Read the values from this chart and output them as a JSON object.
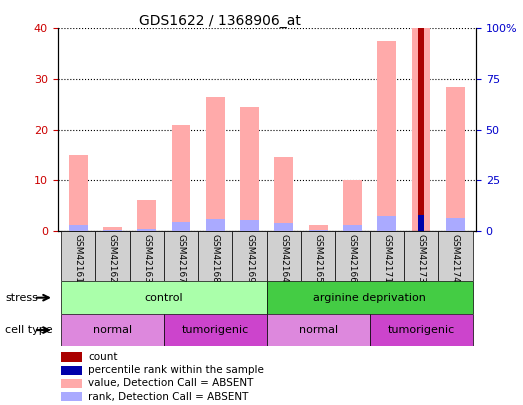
{
  "title": "GDS1622 / 1368906_at",
  "samples": [
    "GSM42161",
    "GSM42162",
    "GSM42163",
    "GSM42167",
    "GSM42168",
    "GSM42169",
    "GSM42164",
    "GSM42165",
    "GSM42166",
    "GSM42171",
    "GSM42173",
    "GSM42174"
  ],
  "value_absent": [
    15.0,
    0.8,
    6.0,
    21.0,
    26.5,
    24.5,
    14.5,
    1.2,
    10.0,
    37.5,
    40.0,
    28.5
  ],
  "rank_absent": [
    3.0,
    0.5,
    1.0,
    4.5,
    6.0,
    5.5,
    4.0,
    0.3,
    3.0,
    7.5,
    0.0,
    6.5
  ],
  "count_value": [
    0,
    0,
    0,
    0,
    0,
    0,
    0,
    0,
    0,
    0,
    40.0,
    0
  ],
  "percentile_rank": [
    0,
    0,
    0,
    0,
    0,
    0,
    0,
    0,
    0,
    0,
    8.0,
    0
  ],
  "ylim_left": [
    0,
    40
  ],
  "ylim_right": [
    0,
    100
  ],
  "yticks_left": [
    0,
    10,
    20,
    30,
    40
  ],
  "ytick_labels_right": [
    "0",
    "25",
    "50",
    "75",
    "100%"
  ],
  "stress_groups": [
    {
      "label": "control",
      "start": 0,
      "end": 6,
      "color": "#aaffaa"
    },
    {
      "label": "arginine deprivation",
      "start": 6,
      "end": 12,
      "color": "#44cc44"
    }
  ],
  "celltype_groups": [
    {
      "label": "normal",
      "start": 0,
      "end": 3,
      "color": "#dd88dd"
    },
    {
      "label": "tumorigenic",
      "start": 3,
      "end": 6,
      "color": "#cc44cc"
    },
    {
      "label": "normal",
      "start": 6,
      "end": 9,
      "color": "#dd88dd"
    },
    {
      "label": "tumorigenic",
      "start": 9,
      "end": 12,
      "color": "#cc44cc"
    }
  ],
  "color_value_absent": "#ffaaaa",
  "color_rank_absent": "#aaaaff",
  "color_count": "#aa0000",
  "color_percentile": "#0000aa",
  "bg_color": "#ffffff",
  "axis_label_color_left": "#cc0000",
  "axis_label_color_right": "#0000cc",
  "legend_items": [
    {
      "label": "count",
      "color": "#aa0000"
    },
    {
      "label": "percentile rank within the sample",
      "color": "#0000aa"
    },
    {
      "label": "value, Detection Call = ABSENT",
      "color": "#ffaaaa"
    },
    {
      "label": "rank, Detection Call = ABSENT",
      "color": "#aaaaff"
    }
  ]
}
